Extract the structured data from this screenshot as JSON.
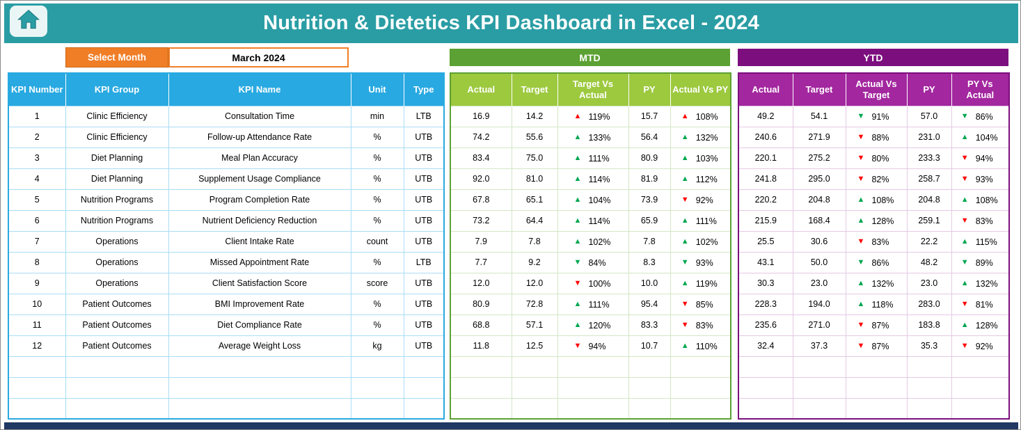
{
  "header": {
    "title": "Nutrition & Dietetics KPI Dashboard in Excel - 2024"
  },
  "controls": {
    "select_month_label": "Select Month",
    "selected_month": "March 2024"
  },
  "icons": {
    "home": "home-icon",
    "arrow_up": "▲",
    "arrow_down": "▼"
  },
  "kpi": {
    "headers": [
      "KPI Number",
      "KPI Group",
      "KPI Name",
      "Unit",
      "Type"
    ]
  },
  "mtd": {
    "title": "MTD",
    "headers": [
      "Actual",
      "Target",
      "Target Vs Actual",
      "PY",
      "Actual Vs PY"
    ]
  },
  "ytd": {
    "title": "YTD",
    "headers": [
      "Actual",
      "Target",
      "Actual Vs Target",
      "PY",
      "PY Vs Actual"
    ]
  },
  "empty_rows": 3,
  "colors": {
    "banner_teal": "#2A9DA4",
    "orange": "#F07E27",
    "kpi_header_blue": "#29A9E1",
    "mtd_title_green": "#5CA133",
    "mtd_header_green": "#9DC93F",
    "ytd_title_purple": "#7C0E7E",
    "ytd_header_magenta": "#A3279F",
    "arrow_good_green": "#00A64F",
    "arrow_bad_red": "#FF0000",
    "bottom_bar_navy": "#1F3864"
  },
  "rows": [
    {
      "num": "1",
      "group": "Clinic Efficiency",
      "name": "Consultation Time",
      "unit": "min",
      "type": "LTB",
      "mtd": {
        "actual": "16.9",
        "target": "14.2",
        "tva": {
          "arrow": "up",
          "color": "red",
          "pct": "119%"
        },
        "py": "15.7",
        "avp": {
          "arrow": "up",
          "color": "red",
          "pct": "108%"
        }
      },
      "ytd": {
        "actual": "49.2",
        "target": "54.1",
        "avt": {
          "arrow": "down",
          "color": "green",
          "pct": "91%"
        },
        "py": "57.0",
        "pva": {
          "arrow": "down",
          "color": "green",
          "pct": "86%"
        }
      }
    },
    {
      "num": "2",
      "group": "Clinic Efficiency",
      "name": "Follow-up Attendance Rate",
      "unit": "%",
      "type": "UTB",
      "mtd": {
        "actual": "74.2",
        "target": "55.6",
        "tva": {
          "arrow": "up",
          "color": "green",
          "pct": "133%"
        },
        "py": "56.4",
        "avp": {
          "arrow": "up",
          "color": "green",
          "pct": "132%"
        }
      },
      "ytd": {
        "actual": "240.6",
        "target": "271.9",
        "avt": {
          "arrow": "down",
          "color": "red",
          "pct": "88%"
        },
        "py": "231.0",
        "pva": {
          "arrow": "up",
          "color": "green",
          "pct": "104%"
        }
      }
    },
    {
      "num": "3",
      "group": "Diet Planning",
      "name": "Meal Plan Accuracy",
      "unit": "%",
      "type": "UTB",
      "mtd": {
        "actual": "83.4",
        "target": "75.0",
        "tva": {
          "arrow": "up",
          "color": "green",
          "pct": "111%"
        },
        "py": "80.9",
        "avp": {
          "arrow": "up",
          "color": "green",
          "pct": "103%"
        }
      },
      "ytd": {
        "actual": "220.1",
        "target": "275.2",
        "avt": {
          "arrow": "down",
          "color": "red",
          "pct": "80%"
        },
        "py": "233.3",
        "pva": {
          "arrow": "down",
          "color": "red",
          "pct": "94%"
        }
      }
    },
    {
      "num": "4",
      "group": "Diet Planning",
      "name": "Supplement Usage Compliance",
      "unit": "%",
      "type": "UTB",
      "mtd": {
        "actual": "92.0",
        "target": "81.0",
        "tva": {
          "arrow": "up",
          "color": "green",
          "pct": "114%"
        },
        "py": "81.9",
        "avp": {
          "arrow": "up",
          "color": "green",
          "pct": "112%"
        }
      },
      "ytd": {
        "actual": "241.8",
        "target": "295.0",
        "avt": {
          "arrow": "down",
          "color": "red",
          "pct": "82%"
        },
        "py": "258.7",
        "pva": {
          "arrow": "down",
          "color": "red",
          "pct": "93%"
        }
      }
    },
    {
      "num": "5",
      "group": "Nutrition Programs",
      "name": "Program Completion Rate",
      "unit": "%",
      "type": "UTB",
      "mtd": {
        "actual": "67.8",
        "target": "65.1",
        "tva": {
          "arrow": "up",
          "color": "green",
          "pct": "104%"
        },
        "py": "73.9",
        "avp": {
          "arrow": "down",
          "color": "red",
          "pct": "92%"
        }
      },
      "ytd": {
        "actual": "220.2",
        "target": "204.8",
        "avt": {
          "arrow": "up",
          "color": "green",
          "pct": "108%"
        },
        "py": "204.8",
        "pva": {
          "arrow": "up",
          "color": "green",
          "pct": "108%"
        }
      }
    },
    {
      "num": "6",
      "group": "Nutrition Programs",
      "name": "Nutrient Deficiency Reduction",
      "unit": "%",
      "type": "UTB",
      "mtd": {
        "actual": "73.2",
        "target": "64.4",
        "tva": {
          "arrow": "up",
          "color": "green",
          "pct": "114%"
        },
        "py": "65.9",
        "avp": {
          "arrow": "up",
          "color": "green",
          "pct": "111%"
        }
      },
      "ytd": {
        "actual": "215.9",
        "target": "168.4",
        "avt": {
          "arrow": "up",
          "color": "green",
          "pct": "128%"
        },
        "py": "259.1",
        "pva": {
          "arrow": "down",
          "color": "red",
          "pct": "83%"
        }
      }
    },
    {
      "num": "7",
      "group": "Operations",
      "name": "Client Intake Rate",
      "unit": "count",
      "type": "UTB",
      "mtd": {
        "actual": "7.9",
        "target": "7.8",
        "tva": {
          "arrow": "up",
          "color": "green",
          "pct": "102%"
        },
        "py": "7.8",
        "avp": {
          "arrow": "up",
          "color": "green",
          "pct": "102%"
        }
      },
      "ytd": {
        "actual": "25.5",
        "target": "30.6",
        "avt": {
          "arrow": "down",
          "color": "red",
          "pct": "83%"
        },
        "py": "22.2",
        "pva": {
          "arrow": "up",
          "color": "green",
          "pct": "115%"
        }
      }
    },
    {
      "num": "8",
      "group": "Operations",
      "name": "Missed Appointment Rate",
      "unit": "%",
      "type": "LTB",
      "mtd": {
        "actual": "7.7",
        "target": "9.2",
        "tva": {
          "arrow": "down",
          "color": "green",
          "pct": "84%"
        },
        "py": "8.3",
        "avp": {
          "arrow": "down",
          "color": "green",
          "pct": "93%"
        }
      },
      "ytd": {
        "actual": "43.1",
        "target": "50.0",
        "avt": {
          "arrow": "down",
          "color": "green",
          "pct": "86%"
        },
        "py": "48.2",
        "pva": {
          "arrow": "down",
          "color": "green",
          "pct": "89%"
        }
      }
    },
    {
      "num": "9",
      "group": "Operations",
      "name": "Client Satisfaction Score",
      "unit": "score",
      "type": "UTB",
      "mtd": {
        "actual": "12.0",
        "target": "12.0",
        "tva": {
          "arrow": "down",
          "color": "red",
          "pct": "100%"
        },
        "py": "10.0",
        "avp": {
          "arrow": "up",
          "color": "green",
          "pct": "119%"
        }
      },
      "ytd": {
        "actual": "30.3",
        "target": "23.0",
        "avt": {
          "arrow": "up",
          "color": "green",
          "pct": "132%"
        },
        "py": "23.0",
        "pva": {
          "arrow": "up",
          "color": "green",
          "pct": "132%"
        }
      }
    },
    {
      "num": "10",
      "group": "Patient Outcomes",
      "name": "BMI Improvement Rate",
      "unit": "%",
      "type": "UTB",
      "mtd": {
        "actual": "80.9",
        "target": "72.8",
        "tva": {
          "arrow": "up",
          "color": "green",
          "pct": "111%"
        },
        "py": "95.4",
        "avp": {
          "arrow": "down",
          "color": "red",
          "pct": "85%"
        }
      },
      "ytd": {
        "actual": "228.3",
        "target": "194.0",
        "avt": {
          "arrow": "up",
          "color": "green",
          "pct": "118%"
        },
        "py": "283.0",
        "pva": {
          "arrow": "down",
          "color": "red",
          "pct": "81%"
        }
      }
    },
    {
      "num": "11",
      "group": "Patient Outcomes",
      "name": "Diet Compliance Rate",
      "unit": "%",
      "type": "UTB",
      "mtd": {
        "actual": "68.8",
        "target": "57.1",
        "tva": {
          "arrow": "up",
          "color": "green",
          "pct": "120%"
        },
        "py": "83.3",
        "avp": {
          "arrow": "down",
          "color": "red",
          "pct": "83%"
        }
      },
      "ytd": {
        "actual": "235.6",
        "target": "271.0",
        "avt": {
          "arrow": "down",
          "color": "red",
          "pct": "87%"
        },
        "py": "183.8",
        "pva": {
          "arrow": "up",
          "color": "green",
          "pct": "128%"
        }
      }
    },
    {
      "num": "12",
      "group": "Patient Outcomes",
      "name": "Average Weight Loss",
      "unit": "kg",
      "type": "UTB",
      "mtd": {
        "actual": "11.8",
        "target": "12.5",
        "tva": {
          "arrow": "down",
          "color": "red",
          "pct": "94%"
        },
        "py": "10.7",
        "avp": {
          "arrow": "up",
          "color": "green",
          "pct": "110%"
        }
      },
      "ytd": {
        "actual": "32.4",
        "target": "37.3",
        "avt": {
          "arrow": "down",
          "color": "red",
          "pct": "87%"
        },
        "py": "35.3",
        "pva": {
          "arrow": "down",
          "color": "red",
          "pct": "92%"
        }
      }
    }
  ]
}
